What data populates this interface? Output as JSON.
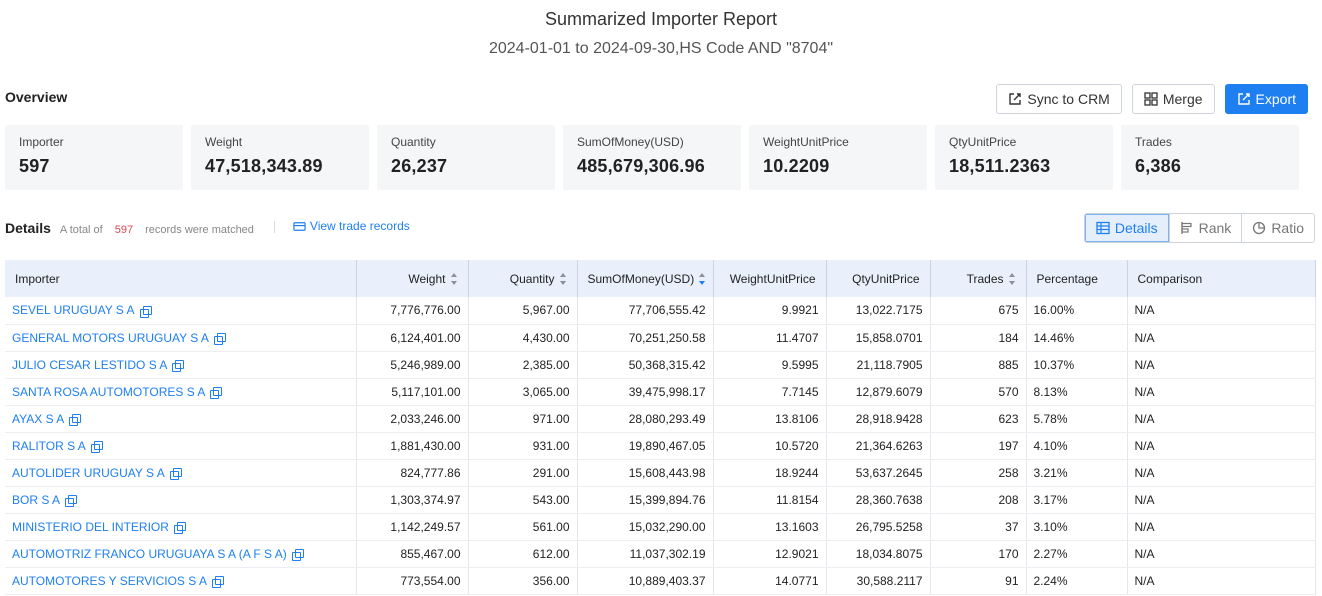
{
  "report": {
    "title": "Summarized Importer Report",
    "subtitle": "2024-01-01 to 2024-09-30,HS Code AND \"8704\""
  },
  "overview": {
    "label": "Overview",
    "buttons": {
      "sync": "Sync to CRM",
      "merge": "Merge",
      "export": "Export"
    },
    "cards": [
      {
        "label": "Importer",
        "value": "597"
      },
      {
        "label": "Weight",
        "value": "47,518,343.89"
      },
      {
        "label": "Quantity",
        "value": "26,237"
      },
      {
        "label": "SumOfMoney(USD)",
        "value": "485,679,306.96"
      },
      {
        "label": "WeightUnitPrice",
        "value": "10.2209"
      },
      {
        "label": "QtyUnitPrice",
        "value": "18,511.2363"
      },
      {
        "label": "Trades",
        "value": "6,386"
      }
    ]
  },
  "details": {
    "label": "Details",
    "total_prefix": "A total of",
    "total_count": "597",
    "total_suffix": "records were matched",
    "view_link": "View trade records",
    "views": [
      "Details",
      "Rank",
      "Ratio"
    ]
  },
  "table": {
    "columns": [
      "Importer",
      "Weight",
      "Quantity",
      "SumOfMoney(USD)",
      "WeightUnitPrice",
      "QtyUnitPrice",
      "Trades",
      "Percentage",
      "Comparison"
    ],
    "rows": [
      [
        "SEVEL URUGUAY S A",
        "7,776,776.00",
        "5,967.00",
        "77,706,555.42",
        "9.9921",
        "13,022.7175",
        "675",
        "16.00%",
        "N/A"
      ],
      [
        "GENERAL MOTORS URUGUAY S A",
        "6,124,401.00",
        "4,430.00",
        "70,251,250.58",
        "11.4707",
        "15,858.0701",
        "184",
        "14.46%",
        "N/A"
      ],
      [
        "JULIO CESAR LESTIDO S A",
        "5,246,989.00",
        "2,385.00",
        "50,368,315.42",
        "9.5995",
        "21,118.7905",
        "885",
        "10.37%",
        "N/A"
      ],
      [
        "SANTA ROSA AUTOMOTORES S A",
        "5,117,101.00",
        "3,065.00",
        "39,475,998.17",
        "7.7145",
        "12,879.6079",
        "570",
        "8.13%",
        "N/A"
      ],
      [
        "AYAX S A",
        "2,033,246.00",
        "971.00",
        "28,080,293.49",
        "13.8106",
        "28,918.9428",
        "623",
        "5.78%",
        "N/A"
      ],
      [
        "RALITOR S A",
        "1,881,430.00",
        "931.00",
        "19,890,467.05",
        "10.5720",
        "21,364.6263",
        "197",
        "4.10%",
        "N/A"
      ],
      [
        "AUTOLIDER URUGUAY S A",
        "824,777.86",
        "291.00",
        "15,608,443.98",
        "18.9244",
        "53,637.2645",
        "258",
        "3.21%",
        "N/A"
      ],
      [
        "BOR S A",
        "1,303,374.97",
        "543.00",
        "15,399,894.76",
        "11.8154",
        "28,360.7638",
        "208",
        "3.17%",
        "N/A"
      ],
      [
        "MINISTERIO DEL INTERIOR",
        "1,142,249.57",
        "561.00",
        "15,032,290.00",
        "13.1603",
        "26,795.5258",
        "37",
        "3.10%",
        "N/A"
      ],
      [
        "AUTOMOTRIZ FRANCO URUGUAYA S A (A F S A)",
        "855,467.00",
        "612.00",
        "11,037,302.19",
        "12.9021",
        "18,034.8075",
        "170",
        "2.27%",
        "N/A"
      ],
      [
        "AUTOMOTORES Y SERVICIOS S A",
        "773,554.00",
        "356.00",
        "10,889,403.37",
        "14.0771",
        "30,588.2117",
        "91",
        "2.24%",
        "N/A"
      ]
    ]
  }
}
